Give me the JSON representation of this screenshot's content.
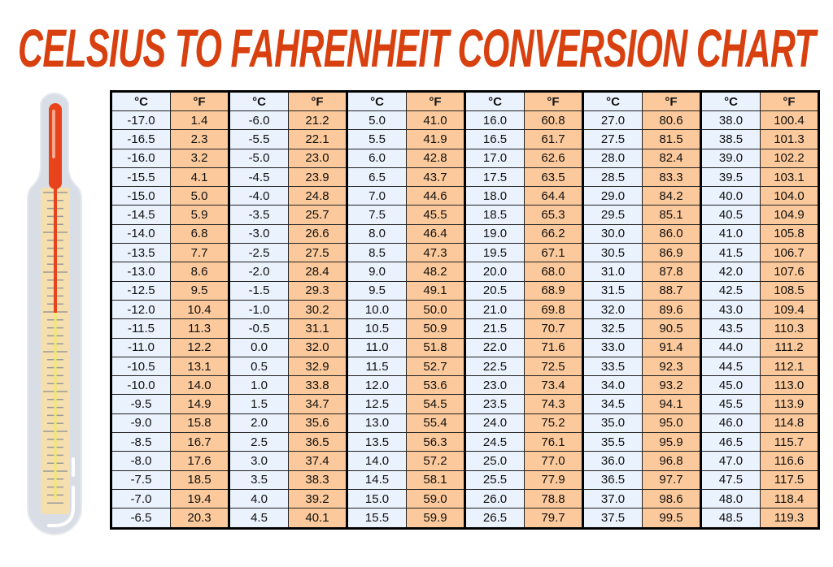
{
  "title": "CELSIUS TO FAHRENHEIT CONVERSION CHART",
  "colors": {
    "title": "#d8400f",
    "celsius_cell": "#eaf2fd",
    "fahrenheit_cell": "#fbc99b",
    "mercury": "#e8431a"
  },
  "chart_data": {
    "type": "table",
    "title": "CELSIUS TO FAHRENHEIT CONVERSION CHART",
    "headers": {
      "celsius": "°C",
      "fahrenheit": "°F"
    },
    "column_pairs": [
      {
        "celsius": [
          "-17.0",
          "-16.5",
          "-16.0",
          "-15.5",
          "-15.0",
          "-14.5",
          "-14.0",
          "-13.5",
          "-13.0",
          "-12.5",
          "-12.0",
          "-11.5",
          "-11.0",
          "-10.5",
          "-10.0",
          "-9.5",
          "-9.0",
          "-8.5",
          "-8.0",
          "-7.5",
          "-7.0",
          "-6.5"
        ],
        "fahrenheit": [
          "1.4",
          "2.3",
          "3.2",
          "4.1",
          "5.0",
          "5.9",
          "6.8",
          "7.7",
          "8.6",
          "9.5",
          "10.4",
          "11.3",
          "12.2",
          "13.1",
          "14.0",
          "14.9",
          "15.8",
          "16.7",
          "17.6",
          "18.5",
          "19.4",
          "20.3"
        ]
      },
      {
        "celsius": [
          "-6.0",
          "-5.5",
          "-5.0",
          "-4.5",
          "-4.0",
          "-3.5",
          "-3.0",
          "-2.5",
          "-2.0",
          "-1.5",
          "-1.0",
          "-0.5",
          "0.0",
          "0.5",
          "1.0",
          "1.5",
          "2.0",
          "2.5",
          "3.0",
          "3.5",
          "4.0",
          "4.5"
        ],
        "fahrenheit": [
          "21.2",
          "22.1",
          "23.0",
          "23.9",
          "24.8",
          "25.7",
          "26.6",
          "27.5",
          "28.4",
          "29.3",
          "30.2",
          "31.1",
          "32.0",
          "32.9",
          "33.8",
          "34.7",
          "35.6",
          "36.5",
          "37.4",
          "38.3",
          "39.2",
          "40.1"
        ]
      },
      {
        "celsius": [
          "5.0",
          "5.5",
          "6.0",
          "6.5",
          "7.0",
          "7.5",
          "8.0",
          "8.5",
          "9.0",
          "9.5",
          "10.0",
          "10.5",
          "11.0",
          "11.5",
          "12.0",
          "12.5",
          "13.0",
          "13.5",
          "14.0",
          "14.5",
          "15.0",
          "15.5"
        ],
        "fahrenheit": [
          "41.0",
          "41.9",
          "42.8",
          "43.7",
          "44.6",
          "45.5",
          "46.4",
          "47.3",
          "48.2",
          "49.1",
          "50.0",
          "50.9",
          "51.8",
          "52.7",
          "53.6",
          "54.5",
          "55.4",
          "56.3",
          "57.2",
          "58.1",
          "59.0",
          "59.9"
        ]
      },
      {
        "celsius": [
          "16.0",
          "16.5",
          "17.0",
          "17.5",
          "18.0",
          "18.5",
          "19.0",
          "19.5",
          "20.0",
          "20.5",
          "21.0",
          "21.5",
          "22.0",
          "22.5",
          "23.0",
          "23.5",
          "24.0",
          "24.5",
          "25.0",
          "25.5",
          "26.0",
          "26.5"
        ],
        "fahrenheit": [
          "60.8",
          "61.7",
          "62.6",
          "63.5",
          "64.4",
          "65.3",
          "66.2",
          "67.1",
          "68.0",
          "68.9",
          "69.8",
          "70.7",
          "71.6",
          "72.5",
          "73.4",
          "74.3",
          "75.2",
          "76.1",
          "77.0",
          "77.9",
          "78.8",
          "79.7"
        ]
      },
      {
        "celsius": [
          "27.0",
          "27.5",
          "28.0",
          "28.5",
          "29.0",
          "29.5",
          "30.0",
          "30.5",
          "31.0",
          "31.5",
          "32.0",
          "32.5",
          "33.0",
          "33.5",
          "34.0",
          "34.5",
          "35.0",
          "35.5",
          "36.0",
          "36.5",
          "37.0",
          "37.5"
        ],
        "fahrenheit": [
          "80.6",
          "81.5",
          "82.4",
          "83.3",
          "84.2",
          "85.1",
          "86.0",
          "86.9",
          "87.8",
          "88.7",
          "89.6",
          "90.5",
          "91.4",
          "92.3",
          "93.2",
          "94.1",
          "95.0",
          "95.9",
          "96.8",
          "97.7",
          "98.6",
          "99.5"
        ]
      },
      {
        "celsius": [
          "38.0",
          "38.5",
          "39.0",
          "39.5",
          "40.0",
          "40.5",
          "41.0",
          "41.5",
          "42.0",
          "42.5",
          "43.0",
          "43.5",
          "44.0",
          "44.5",
          "45.0",
          "45.5",
          "46.0",
          "46.5",
          "47.0",
          "47.5",
          "48.0",
          "48.5"
        ],
        "fahrenheit": [
          "100.4",
          "101.3",
          "102.2",
          "103.1",
          "104.0",
          "104.9",
          "105.8",
          "106.7",
          "107.6",
          "108.5",
          "109.4",
          "110.3",
          "111.2",
          "112.1",
          "113.0",
          "113.9",
          "114.8",
          "115.7",
          "116.6",
          "117.5",
          "118.4",
          "119.3"
        ]
      }
    ]
  }
}
